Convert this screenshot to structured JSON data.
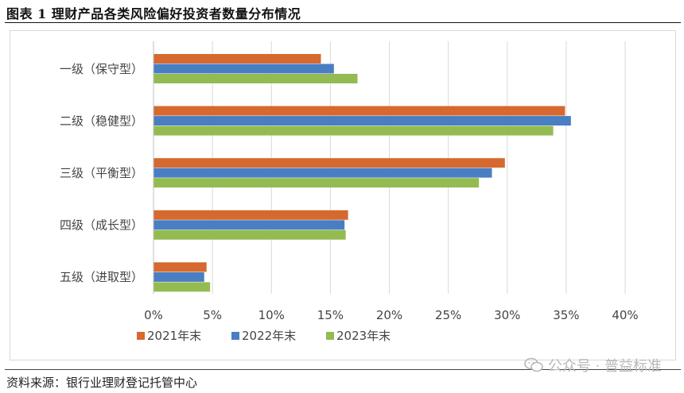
{
  "title": "图表 1 理财产品各类风险偏好投资者数量分布情况",
  "source": "资料来源：银行业理财登记托管中心",
  "watermark": "公众号 · 普益标准",
  "colors": {
    "2021年末": "#d5692f",
    "2022年末": "#4a7ec3",
    "2023年末": "#94bb52"
  },
  "chart_data": {
    "type": "bar",
    "orientation": "horizontal",
    "categories": [
      "一级（保守型）",
      "二级（稳健型）",
      "三级（平衡型）",
      "四级（成长型）",
      "五级（进取型）"
    ],
    "series": [
      {
        "name": "2021年末",
        "values": [
          14.2,
          34.9,
          29.8,
          16.5,
          4.5
        ]
      },
      {
        "name": "2022年末",
        "values": [
          15.3,
          35.4,
          28.7,
          16.2,
          4.3
        ]
      },
      {
        "name": "2023年末",
        "values": [
          17.3,
          33.9,
          27.6,
          16.3,
          4.8
        ]
      }
    ],
    "xlim": [
      0,
      40
    ],
    "xticks": [
      "0%",
      "5%",
      "10%",
      "15%",
      "20%",
      "25%",
      "30%",
      "35%",
      "40%"
    ],
    "grid": true,
    "legend": "bottom"
  }
}
